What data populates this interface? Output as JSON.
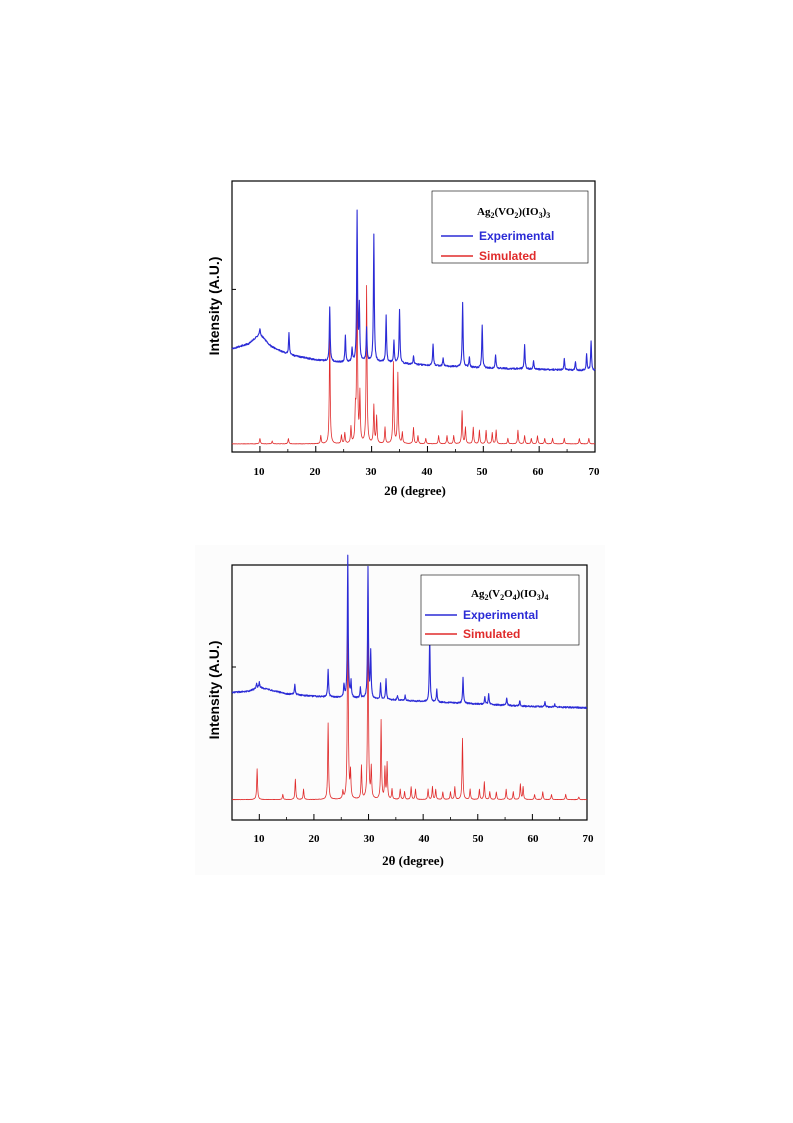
{
  "chart_data": [
    {
      "type": "line",
      "title": "",
      "xlabel": "2θ (degree)",
      "ylabel": "Intensity (A.U.)",
      "xlim": [
        5,
        70
      ],
      "xticks": [
        "10",
        "20",
        "30",
        "40",
        "50",
        "60",
        "70"
      ],
      "legend": {
        "position": "top-right",
        "compound": {
          "base": "Ag",
          "parts": [
            [
              "2",
              true
            ],
            [
              "(VO",
              false
            ],
            [
              "2",
              true
            ],
            [
              ")(IO",
              false
            ],
            [
              "3",
              true
            ],
            [
              ")",
              false
            ],
            [
              "3",
              true
            ]
          ]
        }
      },
      "series": [
        {
          "name": "Experimental",
          "color": "#2b2bd6",
          "baseline": [
            [
              5,
              0.62
            ],
            [
              8,
              0.6
            ],
            [
              10,
              0.565
            ],
            [
              12,
              0.61
            ],
            [
              15,
              0.64
            ],
            [
              20,
              0.66
            ],
            [
              25,
              0.67
            ],
            [
              30,
              0.665
            ],
            [
              40,
              0.68
            ],
            [
              50,
              0.69
            ],
            [
              60,
              0.695
            ],
            [
              70,
              0.7
            ]
          ],
          "peaks": [
            [
              10,
              0.02
            ],
            [
              15.2,
              0.08
            ],
            [
              22.5,
              0.2
            ],
            [
              25.3,
              0.1
            ],
            [
              26.5,
              0.05
            ],
            [
              27.4,
              0.55
            ],
            [
              27.8,
              0.2
            ],
            [
              29.1,
              0.12
            ],
            [
              30.4,
              0.47
            ],
            [
              32.6,
              0.17
            ],
            [
              34,
              0.08
            ],
            [
              35,
              0.2
            ],
            [
              37.5,
              0.03
            ],
            [
              41,
              0.08
            ],
            [
              42.8,
              0.03
            ],
            [
              46.3,
              0.24
            ],
            [
              47.5,
              0.04
            ],
            [
              49.8,
              0.16
            ],
            [
              52.2,
              0.05
            ],
            [
              57.4,
              0.09
            ],
            [
              59,
              0.03
            ],
            [
              64.5,
              0.04
            ],
            [
              66.5,
              0.03
            ],
            [
              68.5,
              0.06
            ],
            [
              69.3,
              0.11
            ]
          ]
        },
        {
          "name": "Simulated",
          "color": "#e02b2b",
          "baseline": [
            [
              5,
              0.97
            ],
            [
              70,
              0.97
            ]
          ],
          "peaks": [
            [
              10,
              0.02
            ],
            [
              12.2,
              0.01
            ],
            [
              15.1,
              0.02
            ],
            [
              20.9,
              0.03
            ],
            [
              22.5,
              0.4
            ],
            [
              24.6,
              0.03
            ],
            [
              25.2,
              0.04
            ],
            [
              26.3,
              0.06
            ],
            [
              27.1,
              0.11
            ],
            [
              27.4,
              0.66
            ],
            [
              27.9,
              0.18
            ],
            [
              29.1,
              0.58
            ],
            [
              30.4,
              0.14
            ],
            [
              30.9,
              0.1
            ],
            [
              32.4,
              0.06
            ],
            [
              33.9,
              0.3
            ],
            [
              34.7,
              0.26
            ],
            [
              35.5,
              0.04
            ],
            [
              37.5,
              0.06
            ],
            [
              38.3,
              0.03
            ],
            [
              39.7,
              0.02
            ],
            [
              42,
              0.03
            ],
            [
              43.5,
              0.03
            ],
            [
              44.7,
              0.03
            ],
            [
              46.2,
              0.12
            ],
            [
              46.8,
              0.06
            ],
            [
              48.2,
              0.06
            ],
            [
              49.3,
              0.05
            ],
            [
              50.5,
              0.05
            ],
            [
              51.6,
              0.04
            ],
            [
              52.3,
              0.05
            ],
            [
              54.4,
              0.02
            ],
            [
              56.2,
              0.05
            ],
            [
              57.4,
              0.03
            ],
            [
              58.6,
              0.02
            ],
            [
              59.7,
              0.03
            ],
            [
              61,
              0.02
            ],
            [
              62.4,
              0.02
            ],
            [
              64.5,
              0.02
            ],
            [
              67.2,
              0.02
            ],
            [
              68.9,
              0.02
            ]
          ]
        }
      ]
    },
    {
      "type": "line",
      "title": "",
      "xlabel": "2θ (degree)",
      "ylabel": "Intensity (A.U.)",
      "xlim": [
        5,
        70
      ],
      "xticks": [
        "10",
        "20",
        "30",
        "40",
        "50",
        "60",
        "70"
      ],
      "legend": {
        "position": "top-right",
        "compound": {
          "base": "Ag",
          "parts": [
            [
              "2",
              true
            ],
            [
              "(V",
              false
            ],
            [
              "2",
              true
            ],
            [
              "O",
              false
            ],
            [
              "4",
              true
            ],
            [
              ")(IO",
              false
            ],
            [
              "3",
              true
            ],
            [
              ")",
              false
            ],
            [
              "4",
              true
            ]
          ]
        }
      },
      "series": [
        {
          "name": "Experimental",
          "color": "#2b2bd6",
          "baseline": [
            [
              5,
              0.5
            ],
            [
              8,
              0.495
            ],
            [
              10,
              0.48
            ],
            [
              12,
              0.49
            ],
            [
              15,
              0.505
            ],
            [
              20,
              0.515
            ],
            [
              25,
              0.52
            ],
            [
              30,
              0.525
            ],
            [
              40,
              0.535
            ],
            [
              50,
              0.545
            ],
            [
              60,
              0.555
            ],
            [
              70,
              0.56
            ]
          ],
          "peaks": [
            [
              9.5,
              0.02
            ],
            [
              10,
              0.02
            ],
            [
              16.5,
              0.04
            ],
            [
              22.6,
              0.11
            ],
            [
              25.5,
              0.05
            ],
            [
              26.2,
              0.56
            ],
            [
              26.8,
              0.06
            ],
            [
              28.5,
              0.04
            ],
            [
              29.9,
              0.51
            ],
            [
              30.4,
              0.18
            ],
            [
              32.2,
              0.06
            ],
            [
              33.2,
              0.08
            ],
            [
              35.3,
              0.02
            ],
            [
              36.7,
              0.02
            ],
            [
              41.2,
              0.26
            ],
            [
              42.5,
              0.05
            ],
            [
              47.3,
              0.1
            ],
            [
              51.3,
              0.03
            ],
            [
              52,
              0.04
            ],
            [
              55.3,
              0.03
            ],
            [
              57.7,
              0.02
            ],
            [
              62.3,
              0.02
            ],
            [
              64.1,
              0.01
            ]
          ]
        },
        {
          "name": "Simulated",
          "color": "#e02b2b",
          "baseline": [
            [
              5,
              0.92
            ],
            [
              70,
              0.92
            ]
          ],
          "peaks": [
            [
              9.6,
              0.12
            ],
            [
              14.3,
              0.02
            ],
            [
              16.6,
              0.08
            ],
            [
              18.1,
              0.04
            ],
            [
              22.6,
              0.3
            ],
            [
              25.3,
              0.03
            ],
            [
              26.2,
              0.85
            ],
            [
              26.7,
              0.1
            ],
            [
              28.7,
              0.13
            ],
            [
              29.9,
              0.82
            ],
            [
              30.5,
              0.12
            ],
            [
              32.3,
              0.31
            ],
            [
              33,
              0.12
            ],
            [
              33.4,
              0.14
            ],
            [
              34.3,
              0.04
            ],
            [
              35.8,
              0.04
            ],
            [
              36.6,
              0.03
            ],
            [
              37.8,
              0.05
            ],
            [
              38.6,
              0.04
            ],
            [
              40.9,
              0.04
            ],
            [
              41.7,
              0.05
            ],
            [
              42.3,
              0.04
            ],
            [
              43.6,
              0.03
            ],
            [
              45,
              0.03
            ],
            [
              45.8,
              0.05
            ],
            [
              47.2,
              0.24
            ],
            [
              48.6,
              0.04
            ],
            [
              50.3,
              0.04
            ],
            [
              51.2,
              0.07
            ],
            [
              52.2,
              0.03
            ],
            [
              53.4,
              0.03
            ],
            [
              55.2,
              0.04
            ],
            [
              56.5,
              0.03
            ],
            [
              57.8,
              0.06
            ],
            [
              58.3,
              0.05
            ],
            [
              60.4,
              0.02
            ],
            [
              61.9,
              0.03
            ],
            [
              63.5,
              0.02
            ],
            [
              66.1,
              0.02
            ],
            [
              68.5,
              0.01
            ]
          ]
        }
      ]
    }
  ]
}
